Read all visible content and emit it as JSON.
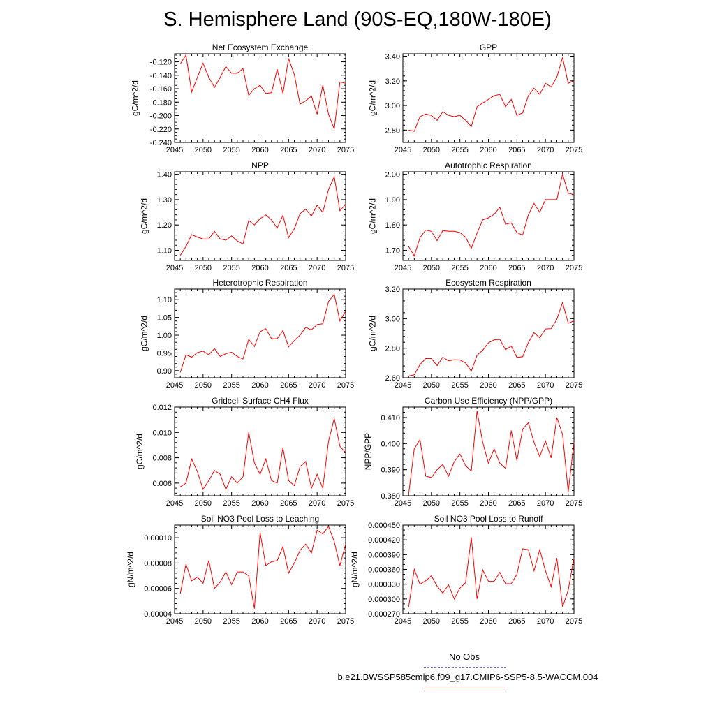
{
  "title": "S. Hemisphere Land (90S-EQ,180W-180E)",
  "legend": {
    "obs_label": "No Obs",
    "run_label": "b.e21.BWSSP585cmip6.f09_g17.CMIP6-SSP5-8.5-WACCM.004",
    "obs_color": "#6a6ad8",
    "run_color": "#ff0000"
  },
  "chart_data": [
    {
      "type": "line",
      "title": "Net Ecosystem Exchange",
      "ylabel": "gC/m^2/d",
      "xlim": [
        2045,
        2075
      ],
      "ylim": [
        -0.24,
        -0.108
      ],
      "xticks": [
        "2045",
        "2050",
        "2055",
        "2060",
        "2065",
        "2070",
        "2075"
      ],
      "yticks": [
        -0.24,
        -0.22,
        -0.2,
        -0.18,
        -0.16,
        -0.14,
        -0.12
      ],
      "yticklabels": [
        "-0.240",
        "-0.220",
        "-0.200",
        "-0.180",
        "-0.160",
        "-0.140",
        "-0.120"
      ],
      "yminor": 0.005,
      "x": [
        2046,
        2047,
        2048,
        2049,
        2050,
        2051,
        2052,
        2053,
        2054,
        2055,
        2056,
        2057,
        2058,
        2059,
        2060,
        2061,
        2062,
        2063,
        2064,
        2065,
        2066,
        2067,
        2068,
        2069,
        2070,
        2071,
        2072,
        2073,
        2074,
        2075
      ],
      "values": [
        -0.123,
        -0.11,
        -0.165,
        -0.143,
        -0.122,
        -0.143,
        -0.158,
        -0.143,
        -0.127,
        -0.137,
        -0.137,
        -0.13,
        -0.17,
        -0.16,
        -0.155,
        -0.167,
        -0.166,
        -0.131,
        -0.167,
        -0.115,
        -0.139,
        -0.183,
        -0.178,
        -0.171,
        -0.198,
        -0.155,
        -0.198,
        -0.22,
        -0.15,
        -0.152
      ]
    },
    {
      "type": "line",
      "title": "GPP",
      "ylabel": "gC/m^2/d",
      "xlim": [
        2045,
        2075
      ],
      "ylim": [
        2.7,
        3.42
      ],
      "xticks": [
        "2045",
        "2050",
        "2055",
        "2060",
        "2065",
        "2070",
        "2075"
      ],
      "yticks": [
        2.8,
        3.0,
        3.2,
        3.4
      ],
      "yticklabels": [
        "2.80",
        "3.00",
        "3.20",
        "3.40"
      ],
      "yminor": 0.04,
      "x": [
        2046,
        2047,
        2048,
        2049,
        2050,
        2051,
        2052,
        2053,
        2054,
        2055,
        2056,
        2057,
        2058,
        2059,
        2060,
        2061,
        2062,
        2063,
        2064,
        2065,
        2066,
        2067,
        2068,
        2069,
        2070,
        2071,
        2072,
        2073,
        2074,
        2075
      ],
      "values": [
        2.8,
        2.79,
        2.91,
        2.93,
        2.92,
        2.88,
        2.95,
        2.92,
        2.91,
        2.92,
        2.88,
        2.83,
        2.99,
        3.02,
        3.05,
        3.08,
        3.09,
        2.99,
        3.05,
        2.92,
        2.94,
        3.08,
        3.14,
        3.09,
        3.18,
        3.15,
        3.23,
        3.39,
        3.18,
        3.2
      ]
    },
    {
      "type": "line",
      "title": "NPP",
      "ylabel": "gC/m^2/d",
      "xlim": [
        2045,
        2075
      ],
      "ylim": [
        1.06,
        1.41
      ],
      "xticks": [
        "2045",
        "2050",
        "2055",
        "2060",
        "2065",
        "2070",
        "2075"
      ],
      "yticks": [
        1.1,
        1.2,
        1.3,
        1.4
      ],
      "yticklabels": [
        "1.10",
        "1.20",
        "1.30",
        "1.40"
      ],
      "yminor": 0.02,
      "x": [
        2046,
        2047,
        2048,
        2049,
        2050,
        2051,
        2052,
        2053,
        2054,
        2055,
        2056,
        2057,
        2058,
        2059,
        2060,
        2061,
        2062,
        2063,
        2064,
        2065,
        2066,
        2067,
        2068,
        2069,
        2070,
        2071,
        2072,
        2073,
        2074,
        2075
      ],
      "values": [
        1.08,
        1.115,
        1.162,
        1.152,
        1.145,
        1.145,
        1.175,
        1.145,
        1.14,
        1.157,
        1.137,
        1.125,
        1.218,
        1.2,
        1.225,
        1.24,
        1.22,
        1.188,
        1.238,
        1.15,
        1.185,
        1.245,
        1.262,
        1.235,
        1.278,
        1.25,
        1.34,
        1.39,
        1.256,
        1.282
      ]
    },
    {
      "type": "line",
      "title": "Autotrophic Respiration",
      "ylabel": "gC/m^2/d",
      "xlim": [
        2045,
        2075
      ],
      "ylim": [
        1.66,
        2.01
      ],
      "xticks": [
        "2045",
        "2050",
        "2055",
        "2060",
        "2065",
        "2070",
        "2075"
      ],
      "yticks": [
        1.7,
        1.8,
        1.9,
        2.0
      ],
      "yticklabels": [
        "1.70",
        "1.80",
        "1.90",
        "2.00"
      ],
      "yminor": 0.02,
      "x": [
        2046,
        2047,
        2048,
        2049,
        2050,
        2051,
        2052,
        2053,
        2054,
        2055,
        2056,
        2057,
        2058,
        2059,
        2060,
        2061,
        2062,
        2063,
        2064,
        2065,
        2066,
        2067,
        2068,
        2069,
        2070,
        2071,
        2072,
        2073,
        2074,
        2075
      ],
      "values": [
        1.715,
        1.678,
        1.75,
        1.78,
        1.775,
        1.738,
        1.778,
        1.775,
        1.775,
        1.77,
        1.752,
        1.708,
        1.768,
        1.82,
        1.828,
        1.842,
        1.87,
        1.803,
        1.808,
        1.77,
        1.76,
        1.84,
        1.885,
        1.85,
        1.9,
        1.9,
        1.9,
        2.0,
        1.925,
        1.92
      ]
    },
    {
      "type": "line",
      "title": "Heterotrophic Respiration",
      "ylabel": "gC/m^2/d",
      "xlim": [
        2045,
        2075
      ],
      "ylim": [
        0.88,
        1.13
      ],
      "xticks": [
        "2045",
        "2050",
        "2055",
        "2060",
        "2065",
        "2070",
        "2075"
      ],
      "yticks": [
        0.9,
        0.95,
        1.0,
        1.05,
        1.1
      ],
      "yticklabels": [
        "0.90",
        "0.95",
        "1.00",
        "1.05",
        "1.10"
      ],
      "yminor": 0.01,
      "x": [
        2046,
        2047,
        2048,
        2049,
        2050,
        2051,
        2052,
        2053,
        2054,
        2055,
        2056,
        2057,
        2058,
        2059,
        2060,
        2061,
        2062,
        2063,
        2064,
        2065,
        2066,
        2067,
        2068,
        2069,
        2070,
        2071,
        2072,
        2073,
        2074,
        2075
      ],
      "values": [
        0.895,
        0.945,
        0.938,
        0.951,
        0.955,
        0.945,
        0.962,
        0.94,
        0.948,
        0.952,
        0.94,
        0.933,
        0.988,
        0.968,
        1.01,
        1.018,
        0.99,
        0.99,
        1.013,
        0.967,
        0.985,
        1.0,
        1.022,
        1.015,
        1.03,
        1.032,
        1.095,
        1.115,
        1.04,
        1.068
      ]
    },
    {
      "type": "line",
      "title": "Ecosystem Respiration",
      "ylabel": "gC/m^2/d",
      "xlim": [
        2045,
        2075
      ],
      "ylim": [
        2.6,
        3.2
      ],
      "xticks": [
        "2045",
        "2050",
        "2055",
        "2060",
        "2065",
        "2070",
        "2075"
      ],
      "yticks": [
        2.6,
        2.8,
        3.0,
        3.2
      ],
      "yticklabels": [
        "2.60",
        "2.80",
        "3.00",
        "3.20"
      ],
      "yminor": 0.04,
      "x": [
        2046,
        2047,
        2048,
        2049,
        2050,
        2051,
        2052,
        2053,
        2054,
        2055,
        2056,
        2057,
        2058,
        2059,
        2060,
        2061,
        2062,
        2063,
        2064,
        2065,
        2066,
        2067,
        2068,
        2069,
        2070,
        2071,
        2072,
        2073,
        2074,
        2075
      ],
      "values": [
        2.612,
        2.62,
        2.69,
        2.73,
        2.73,
        2.682,
        2.74,
        2.715,
        2.722,
        2.72,
        2.7,
        2.645,
        2.752,
        2.786,
        2.836,
        2.856,
        2.86,
        2.79,
        2.815,
        2.738,
        2.742,
        2.838,
        2.905,
        2.87,
        2.93,
        2.932,
        2.995,
        3.11,
        2.968,
        2.985
      ]
    },
    {
      "type": "line",
      "title": "Gridcell Surface CH4 Flux",
      "ylabel": "gC/m^2/d",
      "xlim": [
        2045,
        2075
      ],
      "ylim": [
        0.005,
        0.012
      ],
      "xticks": [
        "2045",
        "2050",
        "2055",
        "2060",
        "2065",
        "2070",
        "2075"
      ],
      "yticks": [
        0.006,
        0.008,
        0.01,
        0.012
      ],
      "yticklabels": [
        "0.006",
        "0.008",
        "0.010",
        "0.012"
      ],
      "yminor": 0.0004,
      "x": [
        2046,
        2047,
        2048,
        2049,
        2050,
        2051,
        2052,
        2053,
        2054,
        2055,
        2056,
        2057,
        2058,
        2059,
        2060,
        2061,
        2062,
        2063,
        2064,
        2065,
        2066,
        2067,
        2068,
        2069,
        2070,
        2071,
        2072,
        2073,
        2074,
        2075
      ],
      "values": [
        0.0057,
        0.006,
        0.0079,
        0.0069,
        0.0055,
        0.0062,
        0.007,
        0.0067,
        0.0055,
        0.0065,
        0.006,
        0.0065,
        0.01,
        0.0076,
        0.0067,
        0.0079,
        0.0062,
        0.006,
        0.0088,
        0.0062,
        0.0058,
        0.0073,
        0.0077,
        0.0056,
        0.0067,
        0.0056,
        0.0093,
        0.0111,
        0.0089,
        0.0084
      ]
    },
    {
      "type": "line",
      "title": "Carbon Use Efficiency (NPP/GPP)",
      "ylabel": "NPP/GPP",
      "xlim": [
        2045,
        2075
      ],
      "ylim": [
        0.38,
        0.414
      ],
      "xticks": [
        "2045",
        "2050",
        "2055",
        "2060",
        "2065",
        "2070",
        "2075"
      ],
      "yticks": [
        0.38,
        0.39,
        0.4,
        0.41
      ],
      "yticklabels": [
        "0.380",
        "0.390",
        "0.400",
        "0.410"
      ],
      "yminor": 0.002,
      "x": [
        2046,
        2047,
        2048,
        2049,
        2050,
        2051,
        2052,
        2053,
        2054,
        2055,
        2056,
        2057,
        2058,
        2059,
        2060,
        2061,
        2062,
        2063,
        2064,
        2065,
        2066,
        2067,
        2068,
        2069,
        2070,
        2071,
        2072,
        2073,
        2074,
        2075
      ],
      "values": [
        0.3805,
        0.398,
        0.4015,
        0.3875,
        0.387,
        0.39,
        0.392,
        0.3875,
        0.393,
        0.396,
        0.3915,
        0.3895,
        0.4125,
        0.4005,
        0.3925,
        0.398,
        0.3925,
        0.3905,
        0.405,
        0.3935,
        0.4055,
        0.408,
        0.4005,
        0.395,
        0.401,
        0.3945,
        0.41,
        0.4035,
        0.3815,
        0.4005
      ]
    },
    {
      "type": "line",
      "title": "Soil NO3 Pool Loss to Leaching",
      "ylabel": "gN/m^2/d",
      "xlim": [
        2045,
        2075
      ],
      "ylim": [
        4e-05,
        0.00011
      ],
      "xticks": [
        "2045",
        "2050",
        "2055",
        "2060",
        "2065",
        "2070",
        "2075"
      ],
      "yticks": [
        4e-05,
        6e-05,
        8e-05,
        0.0001
      ],
      "yticklabels": [
        "0.00004",
        "0.00006",
        "0.00008",
        "0.00010"
      ],
      "yminor": 4e-06,
      "x": [
        2046,
        2047,
        2048,
        2049,
        2050,
        2051,
        2052,
        2053,
        2054,
        2055,
        2056,
        2057,
        2058,
        2059,
        2060,
        2061,
        2062,
        2063,
        2064,
        2065,
        2066,
        2067,
        2068,
        2069,
        2070,
        2071,
        2072,
        2073,
        2074,
        2075
      ],
      "values": [
        5.6e-05,
        7.9e-05,
        6.6e-05,
        6.9e-05,
        6.4e-05,
        8.2e-05,
        6e-05,
        6.5e-05,
        7.3e-05,
        6.3e-05,
        7.3e-05,
        7.3e-05,
        7e-05,
        4.4e-05,
        0.000104,
        7.8e-05,
        8.1e-05,
        8.2e-05,
        9.3e-05,
        7.2e-05,
        8e-05,
        9e-05,
        9.5e-05,
        8.8e-05,
        0.000106,
        0.000103,
        0.000109,
        9.7e-05,
        7.8e-05,
        9.5e-05
      ]
    },
    {
      "type": "line",
      "title": "Soil NO3 Pool Loss to Runoff",
      "ylabel": "gN/m^2/d",
      "xlim": [
        2045,
        2075
      ],
      "ylim": [
        0.00027,
        0.00045
      ],
      "xticks": [
        "2045",
        "2050",
        "2055",
        "2060",
        "2065",
        "2070",
        "2075"
      ],
      "yticks": [
        0.00027,
        0.0003,
        0.00033,
        0.00036,
        0.00039,
        0.00042,
        0.00045
      ],
      "yticklabels": [
        "0.000270",
        "0.000300",
        "0.000330",
        "0.000360",
        "0.000390",
        "0.000420",
        "0.000450"
      ],
      "yminor": 1e-05,
      "x": [
        2046,
        2047,
        2048,
        2049,
        2050,
        2051,
        2052,
        2053,
        2054,
        2055,
        2056,
        2057,
        2058,
        2059,
        2060,
        2061,
        2062,
        2063,
        2064,
        2065,
        2066,
        2067,
        2068,
        2069,
        2070,
        2071,
        2072,
        2073,
        2074,
        2075
      ],
      "values": [
        0.000283,
        0.00036,
        0.00033,
        0.000337,
        0.000347,
        0.000326,
        0.000312,
        0.000329,
        0.0003,
        0.000322,
        0.000333,
        0.000425,
        0.0003,
        0.000359,
        0.000336,
        0.000336,
        0.000354,
        0.000331,
        0.000331,
        0.00035,
        0.000402,
        0.0004,
        0.000357,
        0.0004,
        0.000357,
        0.000325,
        0.000383,
        0.000284,
        0.000318,
        0.000383
      ]
    }
  ]
}
